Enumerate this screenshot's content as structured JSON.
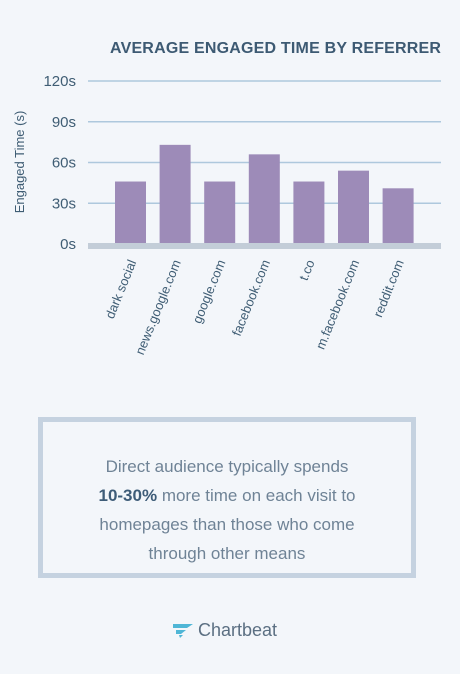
{
  "chart_data": {
    "type": "bar",
    "title": "AVERAGE ENGAGED TIME BY REFERRER",
    "ylabel": "Engaged Time (s)",
    "xlabel": "",
    "categories": [
      "dark social",
      "news.google.com",
      "google.com",
      "facebook.com",
      "t.co",
      "m.facebook.com",
      "reddit.com"
    ],
    "values": [
      46,
      73,
      46,
      66,
      46,
      54,
      41
    ],
    "ylim": [
      0,
      120
    ],
    "yticks": [
      0,
      30,
      60,
      90,
      120
    ],
    "ytick_labels": [
      "0s",
      "30s",
      "60s",
      "90s",
      "120s"
    ],
    "grid": true,
    "colors": {
      "bar": "#9d8bb8",
      "grid": "#aec8dd",
      "axis": "#c3cdd8",
      "text": "#3f5d74"
    }
  },
  "callout": {
    "line1": "Direct audience typically spends",
    "highlight": "10-30%",
    "line2_rest": " more time on each visit to",
    "line3": "homepages than those who come",
    "line4": "through other means",
    "colors": {
      "border": "#c5d2e0",
      "text": "#6f8396",
      "highlight": "#3e5c78"
    }
  },
  "brand": {
    "name": "Chartbeat",
    "icon": "chartbeat-logo-icon",
    "color": "#4fb6d6"
  }
}
